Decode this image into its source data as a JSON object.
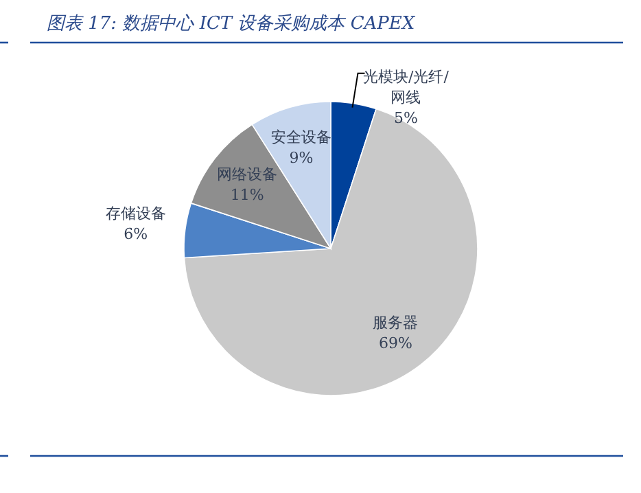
{
  "chart_data": {
    "type": "pie",
    "title": "图表 17: 数据中心 ICT 设备采购成本 CAPEX",
    "categories": [
      "光模块/光纤/网线",
      "服务器",
      "存储设备",
      "网络设备",
      "安全设备"
    ],
    "values": [
      5,
      69,
      6,
      11,
      9
    ],
    "colors": [
      "#00419a",
      "#c9c9c9",
      "#4d82c6",
      "#8e8e8e",
      "#c6d6ee"
    ],
    "value_labels": [
      "5%",
      "69%",
      "6%",
      "11%",
      "9%"
    ]
  }
}
